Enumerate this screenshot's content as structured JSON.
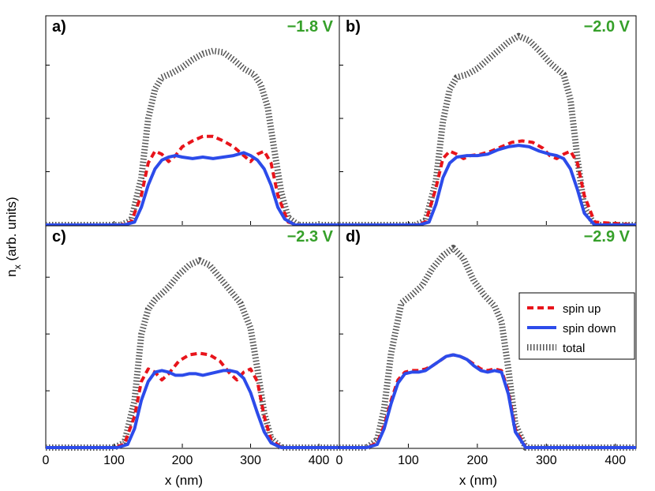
{
  "figure": {
    "ylabel_main": "n",
    "ylabel_sub": "x",
    "ylabel_rest": " (arb. units)",
    "xlabel": "x (nm)"
  },
  "legend": {
    "entries": [
      {
        "label": "spin up",
        "color": "#e8141b",
        "style": "dashed"
      },
      {
        "label": "spin down",
        "color": "#2c4bea",
        "style": "solid"
      },
      {
        "label": "total",
        "color": "#555555",
        "style": "dotted"
      }
    ]
  },
  "chart_data": [
    {
      "type": "line",
      "panel": "a)",
      "voltage": "−1.8 V",
      "xlim": [
        0,
        430
      ],
      "ylim": [
        0,
        1.3
      ],
      "xticks": [
        "0",
        "100",
        "200",
        "300",
        "400"
      ],
      "series": [
        {
          "name": "spin up",
          "x": [
            0,
            110,
            125,
            140,
            150,
            160,
            170,
            180,
            190,
            200,
            215,
            230,
            245,
            260,
            275,
            290,
            300,
            310,
            320,
            330,
            340,
            355,
            370,
            430
          ],
          "y": [
            0,
            0,
            0.02,
            0.2,
            0.42,
            0.5,
            0.48,
            0.43,
            0.47,
            0.53,
            0.57,
            0.6,
            0.6,
            0.57,
            0.53,
            0.47,
            0.43,
            0.48,
            0.5,
            0.42,
            0.2,
            0.02,
            0,
            0
          ]
        },
        {
          "name": "spin down",
          "x": [
            0,
            115,
            130,
            140,
            150,
            160,
            170,
            180,
            190,
            200,
            215,
            230,
            245,
            260,
            275,
            290,
            300,
            310,
            320,
            330,
            340,
            350,
            365,
            430
          ],
          "y": [
            0,
            0,
            0.02,
            0.12,
            0.27,
            0.38,
            0.44,
            0.46,
            0.47,
            0.46,
            0.45,
            0.46,
            0.45,
            0.46,
            0.47,
            0.49,
            0.47,
            0.44,
            0.38,
            0.27,
            0.12,
            0.04,
            0,
            0
          ]
        },
        {
          "name": "total",
          "x": [
            0,
            110,
            125,
            140,
            150,
            160,
            170,
            185,
            200,
            215,
            230,
            245,
            260,
            275,
            290,
            305,
            315,
            325,
            335,
            345,
            355,
            370,
            430
          ],
          "y": [
            0,
            0,
            0.03,
            0.32,
            0.72,
            0.92,
            1.0,
            1.03,
            1.07,
            1.12,
            1.16,
            1.18,
            1.17,
            1.12,
            1.06,
            1.02,
            0.95,
            0.8,
            0.5,
            0.22,
            0.05,
            0,
            0
          ]
        }
      ]
    },
    {
      "type": "line",
      "panel": "b)",
      "voltage": "−2.0 V",
      "xlim": [
        0,
        430
      ],
      "ylim": [
        0,
        1.3
      ],
      "xticks": [
        "0",
        "100",
        "200",
        "300",
        "400"
      ],
      "series": [
        {
          "name": "spin up",
          "x": [
            0,
            110,
            125,
            140,
            150,
            160,
            170,
            180,
            190,
            205,
            220,
            235,
            250,
            265,
            280,
            295,
            305,
            315,
            325,
            335,
            345,
            355,
            370,
            430
          ],
          "y": [
            0,
            0,
            0.02,
            0.25,
            0.45,
            0.5,
            0.48,
            0.45,
            0.47,
            0.48,
            0.5,
            0.53,
            0.56,
            0.57,
            0.56,
            0.52,
            0.47,
            0.45,
            0.48,
            0.5,
            0.42,
            0.2,
            0.02,
            0
          ]
        },
        {
          "name": "spin down",
          "x": [
            0,
            115,
            130,
            140,
            150,
            160,
            170,
            185,
            200,
            215,
            230,
            245,
            260,
            275,
            290,
            305,
            315,
            325,
            335,
            345,
            355,
            370,
            430
          ],
          "y": [
            0,
            0,
            0.02,
            0.14,
            0.32,
            0.42,
            0.46,
            0.47,
            0.47,
            0.48,
            0.51,
            0.53,
            0.54,
            0.53,
            0.5,
            0.48,
            0.47,
            0.45,
            0.38,
            0.24,
            0.08,
            0,
            0
          ]
        },
        {
          "name": "total",
          "x": [
            0,
            110,
            125,
            140,
            150,
            160,
            170,
            185,
            200,
            215,
            230,
            245,
            260,
            275,
            290,
            305,
            315,
            325,
            335,
            345,
            355,
            370,
            430
          ],
          "y": [
            0,
            0,
            0.03,
            0.3,
            0.7,
            0.92,
            1.0,
            1.02,
            1.06,
            1.12,
            1.18,
            1.24,
            1.28,
            1.25,
            1.18,
            1.1,
            1.06,
            1.02,
            0.85,
            0.45,
            0.12,
            0,
            0
          ]
        }
      ]
    },
    {
      "type": "line",
      "panel": "c)",
      "voltage": "−2.3 V",
      "xlim": [
        0,
        430
      ],
      "ylim": [
        0,
        1.3
      ],
      "xticks": [
        "0",
        "100",
        "200",
        "300",
        "400"
      ],
      "series": [
        {
          "name": "spin up",
          "x": [
            0,
            100,
            115,
            130,
            140,
            150,
            160,
            170,
            180,
            195,
            210,
            225,
            240,
            255,
            270,
            280,
            290,
            300,
            310,
            320,
            330,
            345,
            430
          ],
          "y": [
            0,
            0,
            0.02,
            0.2,
            0.42,
            0.5,
            0.48,
            0.43,
            0.47,
            0.55,
            0.59,
            0.6,
            0.59,
            0.55,
            0.47,
            0.43,
            0.48,
            0.5,
            0.42,
            0.2,
            0.05,
            0,
            0
          ]
        },
        {
          "name": "spin down",
          "x": [
            0,
            105,
            120,
            130,
            140,
            150,
            160,
            170,
            180,
            190,
            200,
            210,
            220,
            230,
            240,
            250,
            260,
            270,
            280,
            290,
            300,
            310,
            320,
            330,
            345,
            430
          ],
          "y": [
            0,
            0,
            0.02,
            0.12,
            0.3,
            0.42,
            0.48,
            0.49,
            0.48,
            0.46,
            0.46,
            0.47,
            0.47,
            0.46,
            0.47,
            0.48,
            0.49,
            0.49,
            0.48,
            0.44,
            0.35,
            0.22,
            0.1,
            0.03,
            0,
            0
          ]
        },
        {
          "name": "total",
          "x": [
            0,
            100,
            115,
            130,
            140,
            150,
            160,
            170,
            180,
            195,
            210,
            225,
            240,
            255,
            270,
            285,
            300,
            310,
            320,
            330,
            345,
            430
          ],
          "y": [
            0,
            0,
            0.03,
            0.3,
            0.72,
            0.88,
            0.94,
            0.98,
            1.02,
            1.1,
            1.16,
            1.19,
            1.16,
            1.08,
            1.0,
            0.92,
            0.76,
            0.5,
            0.22,
            0.06,
            0,
            0
          ]
        }
      ]
    },
    {
      "type": "line",
      "panel": "d)",
      "voltage": "−2.9 V",
      "xlim": [
        0,
        430
      ],
      "ylim": [
        0,
        1.3
      ],
      "xticks": [
        "0",
        "100",
        "200",
        "300",
        "400"
      ],
      "series": [
        {
          "name": "spin up",
          "x": [
            0,
            40,
            55,
            65,
            75,
            85,
            95,
            105,
            115,
            125,
            135,
            145,
            155,
            165,
            175,
            185,
            195,
            205,
            215,
            225,
            235,
            245,
            255,
            270,
            430
          ],
          "y": [
            0,
            0,
            0.03,
            0.14,
            0.3,
            0.43,
            0.48,
            0.49,
            0.49,
            0.5,
            0.52,
            0.55,
            0.58,
            0.59,
            0.58,
            0.56,
            0.53,
            0.5,
            0.49,
            0.5,
            0.49,
            0.36,
            0.12,
            0,
            0
          ]
        },
        {
          "name": "spin down",
          "x": [
            0,
            40,
            55,
            65,
            75,
            85,
            95,
            105,
            115,
            125,
            135,
            145,
            155,
            165,
            175,
            185,
            195,
            205,
            215,
            225,
            235,
            245,
            255,
            270,
            430
          ],
          "y": [
            0,
            0,
            0.02,
            0.12,
            0.28,
            0.41,
            0.47,
            0.48,
            0.48,
            0.49,
            0.52,
            0.55,
            0.58,
            0.59,
            0.58,
            0.56,
            0.52,
            0.49,
            0.48,
            0.49,
            0.48,
            0.34,
            0.1,
            0,
            0
          ]
        },
        {
          "name": "total",
          "x": [
            0,
            40,
            55,
            65,
            75,
            90,
            105,
            120,
            135,
            150,
            165,
            180,
            195,
            210,
            225,
            235,
            245,
            255,
            270,
            430
          ],
          "y": [
            0,
            0,
            0.05,
            0.25,
            0.6,
            0.92,
            0.97,
            1.03,
            1.14,
            1.22,
            1.27,
            1.2,
            1.06,
            0.97,
            0.9,
            0.8,
            0.5,
            0.15,
            0,
            0
          ]
        }
      ]
    }
  ]
}
